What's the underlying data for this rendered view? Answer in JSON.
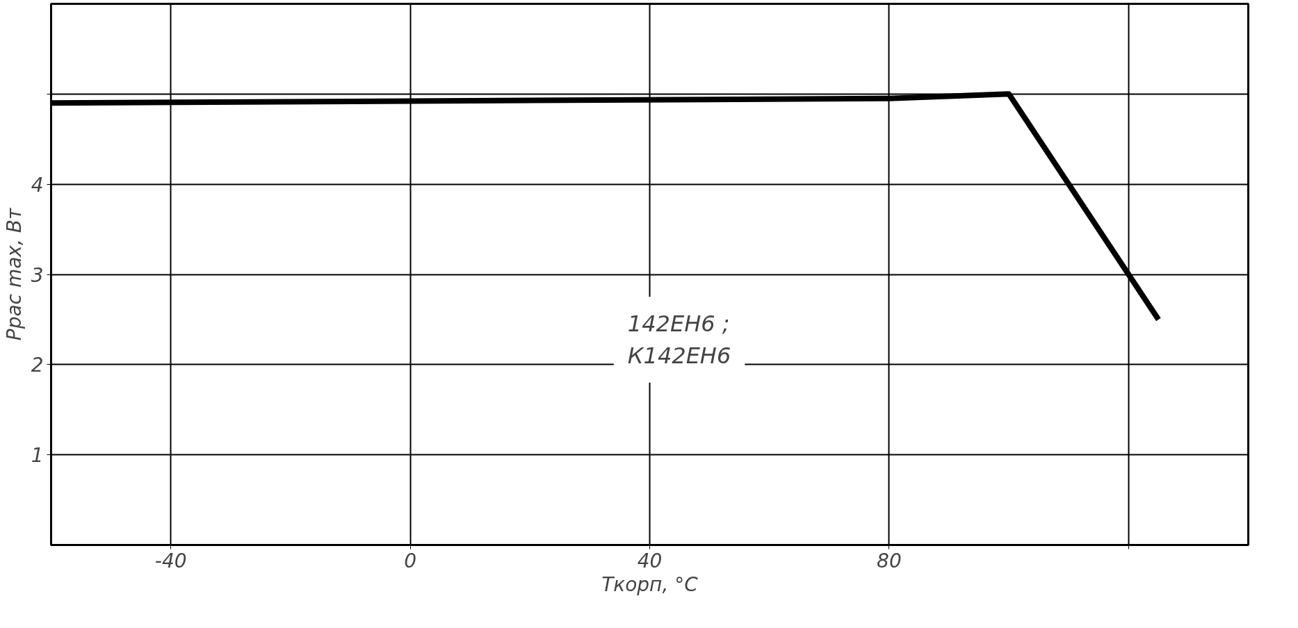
{
  "chart_data": {
    "type": "line",
    "xlabel": "Tкорп, °C",
    "ylabel": "Pрас max, Вт",
    "annotations": [
      "142ЕН6 ;\nК142ЕН6"
    ],
    "x": [
      -60,
      80,
      100,
      125
    ],
    "series": [
      {
        "color": "#000000",
        "values": [
          4.9,
          4.95,
          5.0,
          2.5
        ]
      }
    ],
    "xlim": [
      -60,
      140
    ],
    "ylim": [
      0,
      6
    ],
    "xticks": [
      -40,
      0,
      40,
      80,
      {
        "value": 120,
        "label": null
      }
    ],
    "yticks": [
      1,
      2,
      3,
      4,
      {
        "value": 5,
        "label": null
      }
    ],
    "grid": true,
    "marker": "none",
    "line_style": "solid"
  }
}
